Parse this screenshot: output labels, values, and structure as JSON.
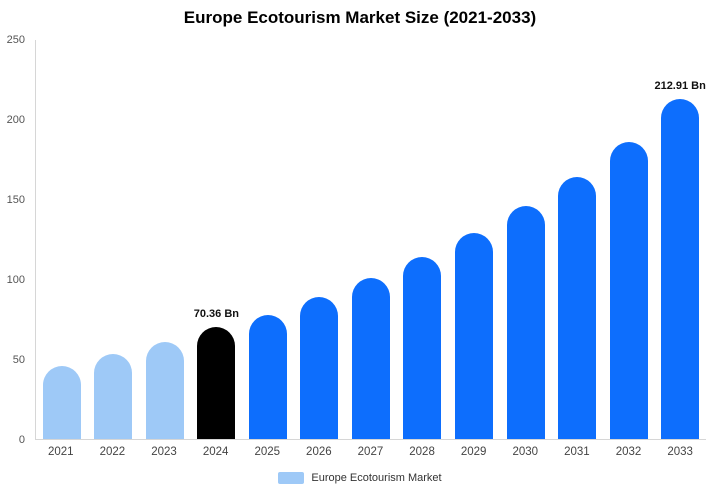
{
  "title": "Europe Ecotourism Market Size (2021-2033)",
  "colors": {
    "light": "#9ec9f7",
    "primary": "#0d6efd",
    "highlight": "#000000",
    "axis": "#d6d6d6"
  },
  "legend": {
    "label": "Europe Ecotourism Market",
    "swatch_color": "#9ec9f7"
  },
  "chart_data": {
    "type": "bar",
    "title": "Europe Ecotourism Market Size (2021-2033)",
    "xlabel": "",
    "ylabel": "",
    "categories": [
      "2021",
      "2022",
      "2023",
      "2024",
      "2025",
      "2026",
      "2027",
      "2028",
      "2029",
      "2030",
      "2031",
      "2032",
      "2033"
    ],
    "values": [
      46,
      53,
      61,
      70.36,
      78,
      89,
      101,
      114,
      129,
      146,
      164,
      186,
      212.91
    ],
    "bar_color_keys": [
      "light",
      "light",
      "light",
      "highlight",
      "primary",
      "primary",
      "primary",
      "primary",
      "primary",
      "primary",
      "primary",
      "primary",
      "primary"
    ],
    "annotations": [
      {
        "index": 3,
        "text": "70.36 Bn"
      },
      {
        "index": 12,
        "text": "212.91 Bn"
      }
    ],
    "ylim": [
      0,
      250
    ],
    "yticks": [
      0,
      50,
      100,
      150,
      200,
      250
    ],
    "grid": false,
    "legend_entries": [
      "Europe Ecotourism Market"
    ],
    "legend_position": "bottom"
  }
}
